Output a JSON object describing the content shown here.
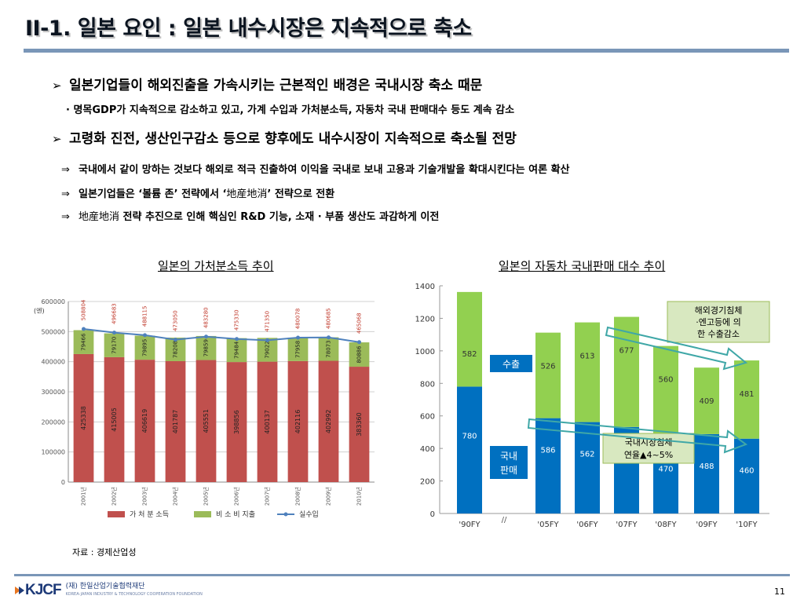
{
  "header": {
    "title": "II-1. 일본 요인 : 일본 내수시장은 지속적으로 축소"
  },
  "body": {
    "bullet1": "일본기업들이 해외진출을 가속시키는 근본적인 배경은 국내시장 축소 때문",
    "bullet1_sub": "· 명목GDP가 지속적으로 감소하고 있고, 가계 수입과 가처분소득, 자동차 국내 판매대수 등도 계속 감소",
    "bullet2": "고령화 진전, 생산인구감소 등으로 향후에도 내수시장이 지속적으로 축소될 전망",
    "arrow_symbol": "⇒",
    "arrow1": "국내에서 같이 망하는 것보다 해외로 적극 진출하여 이익을 국내로 보내 고용과 기술개발을 확대시킨다는 여론 확산",
    "arrow2_a": "일본기업들은  ‘볼륨 존’ 전략에서 ‘",
    "arrow2_b": "地産地消",
    "arrow2_c": "’ 전략으로 전환",
    "arrow3_a": "地産地消",
    "arrow3_b": " 전략 추진으로 인해 핵심인 R&D 기능, 소재 · 부품 생산도 과감하게 이전"
  },
  "left_chart_title": "일본의 가처분소득 추이",
  "right_chart_title": "일본의 자동차 국내판매 대수 추이",
  "source": "자료 : 경제산업성",
  "footer": {
    "logo": "KJCF",
    "org": "(재) 한일산업기술협력재단",
    "org_en": "KOREA-JAPAN INDUSTRY & TECHNOLOGY COOPERATION FOUNDATION",
    "page": "11"
  },
  "colors": {
    "red": "#c0504d",
    "green": "#9bbb59",
    "blue_line": "#4f81bd",
    "car_green": "#92d050",
    "car_blue": "#0070c0"
  },
  "chart_data": [
    {
      "type": "bar",
      "title": "일본의 가처분소득 추이",
      "ylabel": "(엔)",
      "ylim": [
        0,
        600000
      ],
      "yticks": [
        "0",
        "100000",
        "200000",
        "300000",
        "400000",
        "500000",
        "600000"
      ],
      "categories": [
        "2001년",
        "2002년",
        "2003년",
        "2004년",
        "2005년",
        "2006년",
        "2007년",
        "2008년",
        "2009년",
        "2010년"
      ],
      "series": [
        {
          "name": "가 처 분 소득",
          "values": [
            425338,
            415005,
            406619,
            401787,
            405551,
            398856,
            400137,
            402116,
            402992,
            383360
          ]
        },
        {
          "name": "비 소 비 지출",
          "values": [
            79466,
            79170,
            79895,
            78208,
            79859,
            79484,
            79022,
            77958,
            78073,
            80886
          ]
        },
        {
          "name": "실수입",
          "values": [
            508804,
            496683,
            488115,
            473050,
            483280,
            475330,
            471350,
            480078,
            480685,
            465068
          ]
        }
      ],
      "stack_label_left": "가 처 분 소득",
      "stack_label_mid": "비 소 비 지출",
      "legend_line": "실수입"
    },
    {
      "type": "bar",
      "title": "일본의 자동차 국내판매 대수 추이",
      "ylim": [
        0,
        1400
      ],
      "yticks": [
        "0",
        "200",
        "400",
        "600",
        "800",
        "1000",
        "1200",
        "1400"
      ],
      "categories": [
        "'90FY",
        "'05FY",
        "'06FY",
        "'07FY",
        "'08FY",
        "'09FY",
        "'10FY"
      ],
      "axis_break": "//",
      "series": [
        {
          "name": "국내 판매",
          "values": [
            780,
            586,
            562,
            532,
            470,
            488,
            460
          ]
        },
        {
          "name": "수출",
          "values": [
            582,
            526,
            613,
            677,
            560,
            409,
            481
          ]
        }
      ],
      "label_export": "수출",
      "label_domestic": "국내 판매",
      "callout_export": "해외경기침체·엔고등에 의한 수출감소",
      "callout_domestic": "국내시장침체 연율▲4~5%"
    }
  ]
}
